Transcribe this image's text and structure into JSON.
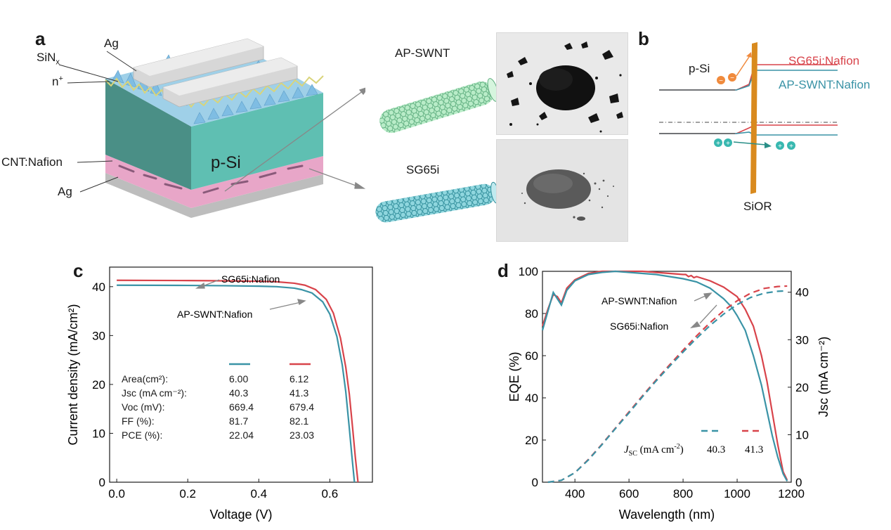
{
  "panel_labels": {
    "a": "a",
    "b": "b",
    "c": "c",
    "d": "d"
  },
  "panel_a": {
    "labels": {
      "ag_top": "Ag",
      "sinx": "SiN",
      "sinx_sub": "x",
      "n_plus": "n",
      "n_plus_sup": "+",
      "p_si": "p-Si",
      "cnt_nafion": "CNT:Nafion",
      "ag_bottom": "Ag",
      "ap_swnt": "AP-SWNT",
      "sg65i": "SG65i"
    },
    "colors": {
      "silicon": "#5fbfb2",
      "silicon_dark": "#4a9f95",
      "pyramids": "#8ec6e6",
      "fingers": "#d7d7d7",
      "cnt_layer": "#e8a6c8",
      "ag_back": "#bdbdbd",
      "nanotube_ap": "#8ed8a8",
      "nanotube_sg": "#5cc0cc"
    }
  },
  "panel_b": {
    "labels": {
      "p_si": "p-Si",
      "sg65i_nafion": "SG65i:Nafion",
      "ap_swnt_nafion": "AP-SWNT:Nafion",
      "sior": "SiOR"
    },
    "colors": {
      "red": "#d8434a",
      "blue": "#3a93a6",
      "interface": "#d98a1e",
      "electron": "#f08a3c",
      "hole": "#38b8b0"
    }
  },
  "chart_data": [
    {
      "type": "line",
      "panel": "c",
      "xlabel": "Voltage (V)",
      "ylabel": "Current density (mA/cm²)",
      "xlim": [
        -0.02,
        0.72
      ],
      "ylim": [
        0,
        44
      ],
      "xticks": [
        "0.0",
        "0.2",
        "0.4",
        "0.6"
      ],
      "yticks": [
        "0",
        "10",
        "20",
        "30",
        "40"
      ],
      "series": [
        {
          "name": "SG65i:Nafion",
          "color": "#d8434a",
          "x": [
            0,
            0.1,
            0.2,
            0.3,
            0.4,
            0.45,
            0.5,
            0.53,
            0.56,
            0.59,
            0.61,
            0.63,
            0.645,
            0.655,
            0.665,
            0.672,
            0.6794
          ],
          "y": [
            41.3,
            41.28,
            41.25,
            41.2,
            41.1,
            41.0,
            40.7,
            40.3,
            39.4,
            37.4,
            34.6,
            29.5,
            23.5,
            18.0,
            10.5,
            5.0,
            0
          ]
        },
        {
          "name": "AP-SWNT:Nafion",
          "color": "#3a93a6",
          "x": [
            0,
            0.1,
            0.2,
            0.3,
            0.4,
            0.45,
            0.5,
            0.52,
            0.55,
            0.58,
            0.6,
            0.62,
            0.635,
            0.645,
            0.655,
            0.662,
            0.6694
          ],
          "y": [
            40.3,
            40.28,
            40.25,
            40.2,
            40.1,
            40.0,
            39.7,
            39.4,
            38.7,
            36.9,
            34.4,
            29.8,
            24.0,
            18.5,
            11.0,
            5.5,
            0
          ]
        }
      ],
      "table": {
        "headers": [
          "Area(cm²):",
          "Jsc (mA cm⁻²):",
          "Voc (mV):",
          "FF (%):",
          "PCE (%):"
        ],
        "ap_swnt_values": [
          "6.00",
          "40.3",
          "669.4",
          "81.7",
          "22.04"
        ],
        "sg65i_values": [
          "6.12",
          "41.3",
          "679.4",
          "82.1",
          "23.03"
        ]
      },
      "annotations": [
        "SG65i:Nafion",
        "AP-SWNT:Nafion"
      ]
    },
    {
      "type": "line",
      "panel": "d",
      "xlabel": "Wavelength (nm)",
      "ylabel": "EQE (%)",
      "ylabel_right": "Jsc (mA cm⁻²)",
      "xlim": [
        280,
        1200
      ],
      "ylim": [
        0,
        100
      ],
      "ylim_right": [
        0,
        44.4
      ],
      "xticks": [
        "400",
        "600",
        "800",
        "1000",
        "1200"
      ],
      "yticks": [
        "0",
        "20",
        "40",
        "60",
        "80",
        "100"
      ],
      "yticks_right": [
        "0",
        "10",
        "20",
        "30",
        "40"
      ],
      "series": [
        {
          "name": "SG65i:Nafion EQE",
          "color": "#d8434a",
          "x": [
            280,
            300,
            320,
            335,
            350,
            370,
            400,
            450,
            500,
            550,
            600,
            650,
            700,
            750,
            800,
            810,
            820,
            830,
            840,
            850,
            900,
            950,
            1000,
            1030,
            1060,
            1090,
            1110,
            1130,
            1150,
            1170,
            1185
          ],
          "y": [
            74,
            82,
            89,
            88,
            85,
            92,
            96,
            99,
            100,
            100,
            100,
            100,
            99.5,
            99,
            98.5,
            98.5,
            97.5,
            98,
            97,
            97.5,
            95.5,
            92.5,
            88,
            82,
            74,
            60,
            48,
            33,
            18,
            5,
            1
          ]
        },
        {
          "name": "AP-SWNT:Nafion EQE",
          "color": "#3a93a6",
          "x": [
            280,
            300,
            320,
            335,
            350,
            370,
            400,
            450,
            500,
            550,
            600,
            650,
            700,
            750,
            800,
            850,
            900,
            950,
            980,
            1000,
            1030,
            1060,
            1090,
            1110,
            1130,
            1150,
            1170,
            1185
          ],
          "y": [
            72,
            81,
            90,
            87,
            84,
            91,
            95.5,
            98.5,
            99.5,
            100,
            99.5,
            99,
            98.5,
            97.5,
            96.5,
            95,
            92,
            87,
            83,
            79,
            72,
            60,
            46,
            34,
            22,
            12,
            4,
            0.5
          ]
        },
        {
          "name": "SG65i:Nafion Jsc",
          "color": "#d8434a",
          "dashed": true,
          "axis": "right",
          "x": [
            300,
            350,
            400,
            450,
            500,
            550,
            600,
            650,
            700,
            750,
            800,
            850,
            900,
            950,
            1000,
            1050,
            1100,
            1150,
            1185
          ],
          "y": [
            0,
            0.4,
            2.0,
            4.8,
            8.0,
            11.4,
            14.8,
            18.2,
            21.5,
            24.7,
            27.8,
            30.8,
            33.6,
            36.1,
            38.2,
            39.8,
            40.8,
            41.2,
            41.3
          ]
        },
        {
          "name": "AP-SWNT:Nafion Jsc",
          "color": "#3a93a6",
          "dashed": true,
          "axis": "right",
          "x": [
            300,
            350,
            400,
            450,
            500,
            550,
            600,
            650,
            700,
            750,
            800,
            850,
            900,
            950,
            1000,
            1050,
            1100,
            1150,
            1185
          ],
          "y": [
            0,
            0.4,
            2.0,
            4.7,
            7.9,
            11.3,
            14.6,
            18.0,
            21.3,
            24.4,
            27.4,
            30.3,
            33.0,
            35.4,
            37.4,
            38.9,
            39.8,
            40.2,
            40.3
          ]
        }
      ],
      "legend": {
        "label": "J",
        "label_sub": "SC",
        "label_units": " (mA cm",
        "label_exp": "-2",
        "label_end": ")",
        "ap_value": "40.3",
        "sg_value": "41.3"
      },
      "annotations": [
        "AP-SWNT:Nafion",
        "SG65i:Nafion"
      ]
    }
  ]
}
